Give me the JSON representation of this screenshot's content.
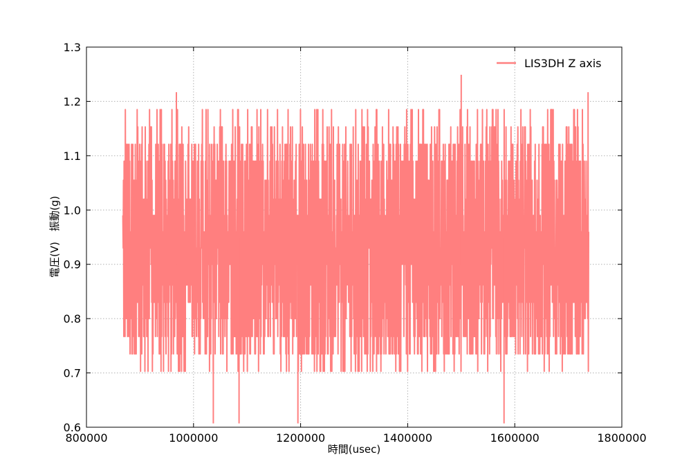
{
  "chart_data": {
    "type": "line",
    "title": "",
    "xlabel": "時間(usec)",
    "ylabel": "電圧(V)　振動(g)",
    "xlim": [
      800000,
      1800000
    ],
    "ylim": [
      0.6,
      1.3
    ],
    "x_ticks": [
      "800000",
      "1000000",
      "1200000",
      "1400000",
      "1600000",
      "1800000"
    ],
    "y_ticks": [
      "0.6",
      "0.7",
      "0.8",
      "0.9",
      "1.0",
      "1.1",
      "1.2",
      "1.3"
    ],
    "grid": true,
    "legend_position": "top-right",
    "series": [
      {
        "name": "LIS3DH Z axis",
        "color": "#ff7f7f",
        "x_range": [
          868000,
          1738000
        ],
        "value_min": 0.607,
        "value_max": 1.249,
        "typical_band": [
          0.703,
          1.121
        ],
        "sample_peaks": [
          {
            "x": 968000,
            "value": 1.217
          },
          {
            "x": 1037000,
            "value": 0.607
          },
          {
            "x": 1085000,
            "value": 0.607
          },
          {
            "x": 1195000,
            "value": 0.607
          },
          {
            "x": 1500000,
            "value": 1.249
          },
          {
            "x": 1580000,
            "value": 0.607
          },
          {
            "x": 1737000,
            "value": 1.217
          }
        ]
      }
    ]
  }
}
